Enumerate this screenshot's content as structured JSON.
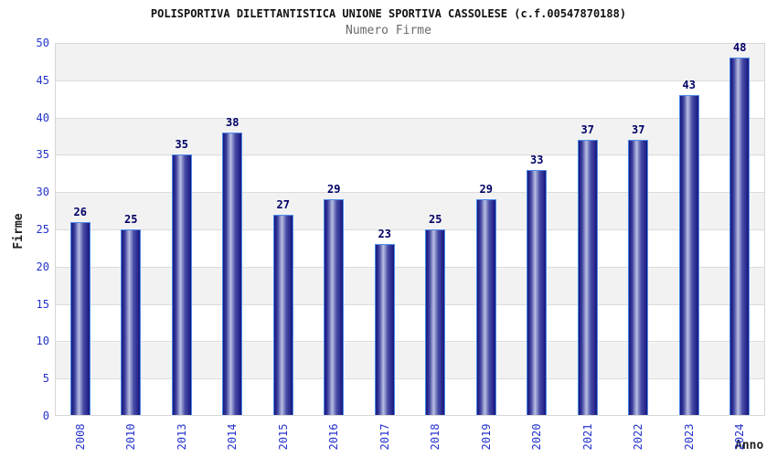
{
  "chart_data": {
    "type": "bar",
    "title": "POLISPORTIVA DILETTANTISTICA UNIONE SPORTIVA CASSOLESE (c.f.00547870188)",
    "subtitle": "Numero Firme",
    "xlabel": "Anno",
    "ylabel": "Firme",
    "categories": [
      "2008",
      "2010",
      "2013",
      "2014",
      "2015",
      "2016",
      "2017",
      "2018",
      "2019",
      "2020",
      "2021",
      "2022",
      "2023",
      "2024"
    ],
    "values": [
      26,
      25,
      35,
      38,
      27,
      29,
      23,
      25,
      29,
      33,
      37,
      37,
      43,
      48
    ],
    "ylim": [
      0,
      50
    ],
    "ytick_step": 5,
    "grid": true,
    "legend": "none",
    "background_bands": "alternating gray/white every 5 units",
    "colors": {
      "bar_edge": "#16167e",
      "bar_mid": "#b9bfe2",
      "bar_border": "#4d8be8",
      "axis_tick": "#2433cc",
      "value_label": "#000066",
      "band": "#f2f2f2",
      "gridline": "#dcdcdc",
      "plot_border": "#d6d6d6",
      "title": "#111111",
      "subtitle": "#6b6b6b",
      "axis_title": "#222222",
      "background": "#ffffff"
    }
  }
}
